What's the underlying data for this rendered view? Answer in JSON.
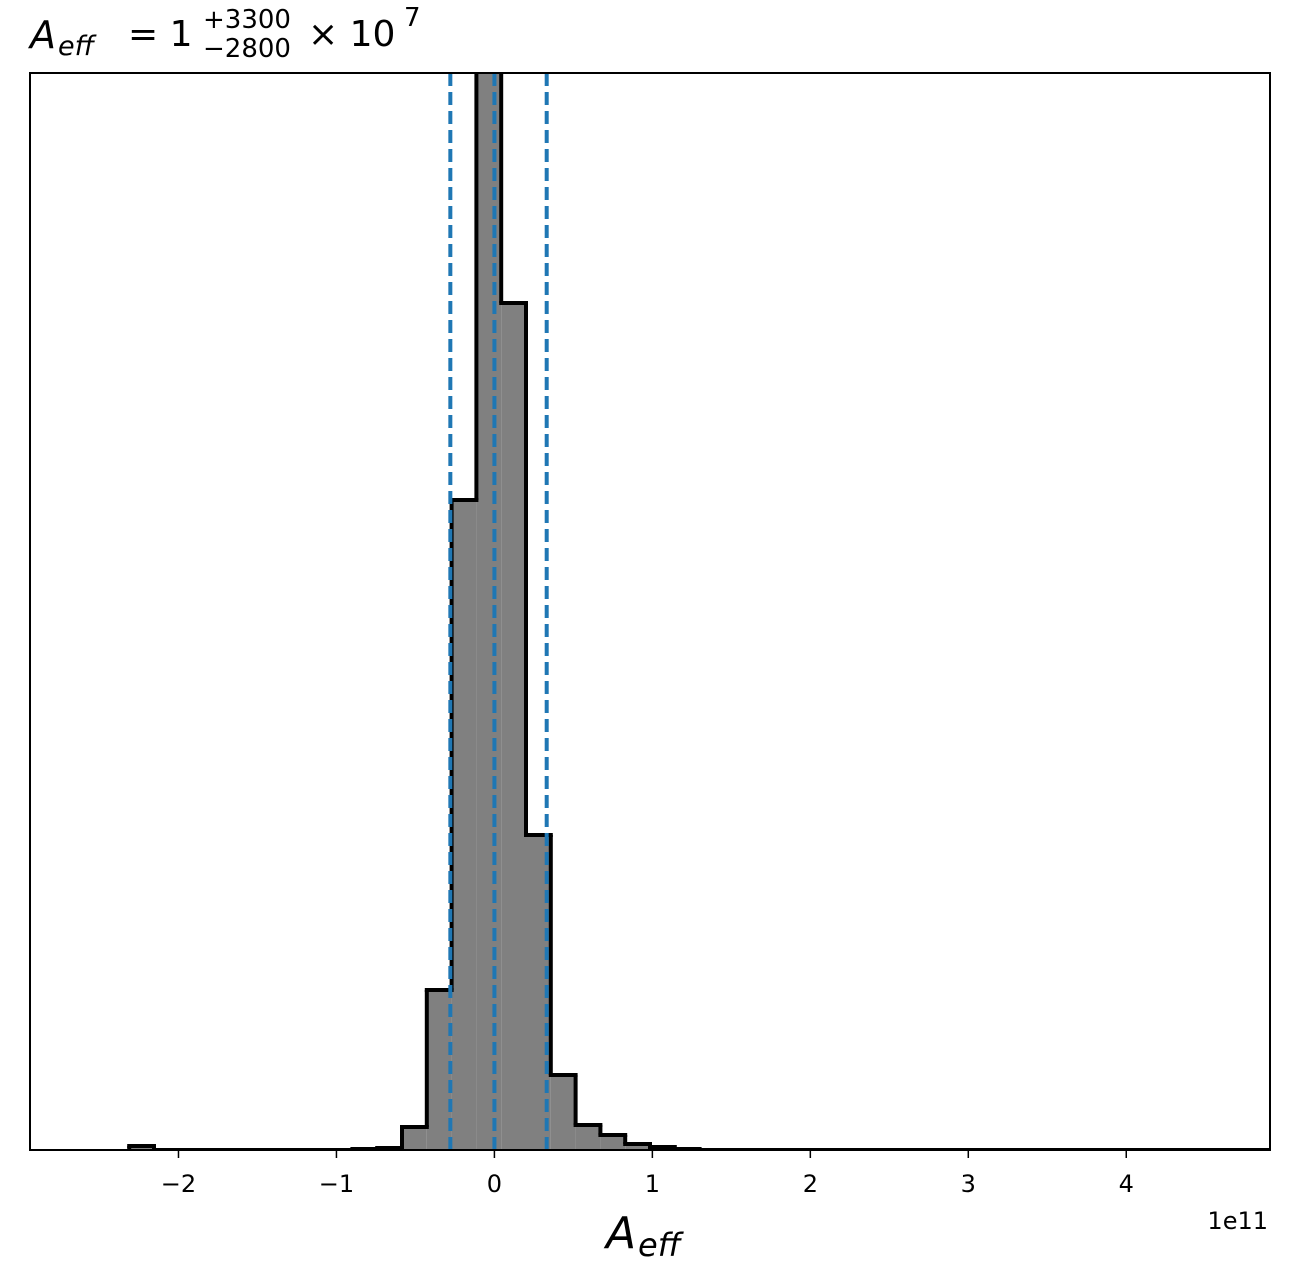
{
  "chart_data": {
    "type": "histogram",
    "title": {
      "symbol": "A",
      "subscript": "eff",
      "equals": "= 1",
      "upper": "+3300",
      "lower": "−2800",
      "times": "× 10",
      "exponent": "7"
    },
    "xlabel": {
      "symbol": "A",
      "subscript": "eff"
    },
    "offset_text": "1e11",
    "bins": [
      -2.312,
      -2.155,
      -1.998,
      -1.841,
      -1.684,
      -1.527,
      -1.37,
      -1.213,
      -1.056,
      -0.899,
      -0.742,
      -0.585,
      -0.428,
      -0.271,
      -0.114,
      0.043,
      0.2,
      0.357,
      0.514,
      0.671,
      0.828,
      0.985,
      1.142,
      1.299,
      1.456,
      1.613,
      1.77,
      1.927,
      2.084,
      2.241,
      2.398,
      2.555,
      2.712,
      2.869,
      3.026,
      3.183,
      3.34,
      3.497,
      3.654,
      3.811,
      3.968,
      4.125,
      4.282,
      4.439,
      4.596,
      4.753,
      4.91
    ],
    "counts": [
      4,
      0,
      0,
      0,
      0,
      0,
      0,
      0,
      0,
      1,
      2,
      23,
      160,
      650,
      1110,
      847,
      315,
      75,
      25,
      15,
      6,
      3,
      1,
      0,
      0,
      0,
      0,
      0,
      0,
      0,
      0,
      0,
      0,
      0,
      0,
      0,
      0,
      0,
      0,
      0,
      0,
      0,
      0,
      0,
      0,
      0
    ],
    "color": "#808080",
    "edge_color": "#000000",
    "xlim": [
      -2.94,
      4.91
    ],
    "ylim": [
      0,
      1077
    ],
    "xticks": [
      {
        "value": -2,
        "label": "−2"
      },
      {
        "value": -1,
        "label": "−1"
      },
      0,
      1,
      2,
      3,
      4
    ],
    "quantiles": {
      "values": [
        -0.279,
        0.0001,
        0.331
      ],
      "color": "#1f77b4"
    }
  }
}
